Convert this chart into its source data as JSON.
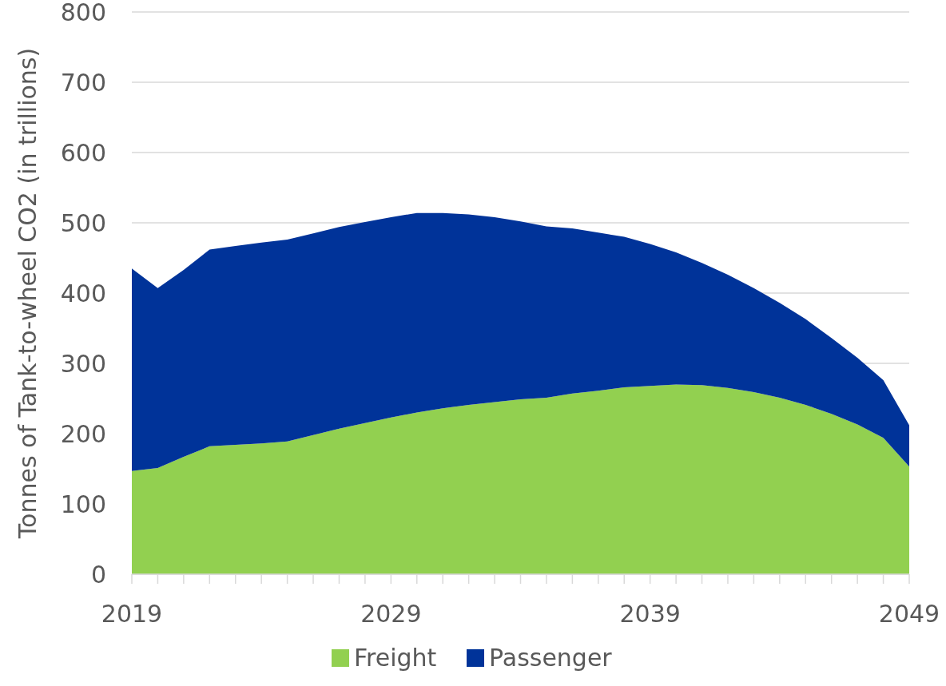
{
  "chart_data": {
    "type": "area",
    "stacked": true,
    "ylabel": "Tonnes of Tank-to-wheel CO2 (in trillions)",
    "x": [
      2019,
      2020,
      2021,
      2022,
      2023,
      2024,
      2025,
      2026,
      2027,
      2028,
      2029,
      2030,
      2031,
      2032,
      2033,
      2034,
      2035,
      2036,
      2037,
      2038,
      2039,
      2040,
      2041,
      2042,
      2043,
      2044,
      2045,
      2046,
      2047,
      2048,
      2049
    ],
    "xlim": [
      2019,
      2049
    ],
    "xticks": [
      2019,
      {
        "value": 2020,
        "label": null
      },
      {
        "value": 2021,
        "label": null
      },
      {
        "value": 2022,
        "label": null
      },
      {
        "value": 2023,
        "label": null
      },
      {
        "value": 2024,
        "label": null
      },
      {
        "value": 2025,
        "label": null
      },
      {
        "value": 2026,
        "label": null
      },
      {
        "value": 2027,
        "label": null
      },
      {
        "value": 2028,
        "label": null
      },
      2029,
      {
        "value": 2030,
        "label": null
      },
      {
        "value": 2031,
        "label": null
      },
      {
        "value": 2032,
        "label": null
      },
      {
        "value": 2033,
        "label": null
      },
      {
        "value": 2034,
        "label": null
      },
      {
        "value": 2035,
        "label": null
      },
      {
        "value": 2036,
        "label": null
      },
      {
        "value": 2037,
        "label": null
      },
      {
        "value": 2038,
        "label": null
      },
      2039,
      {
        "value": 2040,
        "label": null
      },
      {
        "value": 2041,
        "label": null
      },
      {
        "value": 2042,
        "label": null
      },
      {
        "value": 2043,
        "label": null
      },
      {
        "value": 2044,
        "label": null
      },
      {
        "value": 2045,
        "label": null
      },
      {
        "value": 2046,
        "label": null
      },
      {
        "value": 2047,
        "label": null
      },
      {
        "value": 2048,
        "label": null
      },
      2049
    ],
    "ylim": [
      0,
      800
    ],
    "yticks": [
      0,
      100,
      200,
      300,
      400,
      500,
      600,
      700,
      800
    ],
    "grid": "y",
    "legend": "bottom",
    "series": [
      {
        "name": "Freight",
        "color": "#92d050",
        "values": [
          147,
          151,
          167,
          182,
          184,
          186,
          189,
          198,
          207,
          215,
          223,
          230,
          236,
          241,
          245,
          249,
          251,
          257,
          261,
          266,
          268,
          270,
          269,
          265,
          259,
          251,
          241,
          228,
          213,
          194,
          153
        ]
      },
      {
        "name": "Passenger",
        "color": "#003399",
        "values": [
          288,
          256,
          266,
          280,
          283,
          286,
          287,
          287,
          287,
          286,
          285,
          284,
          278,
          271,
          263,
          253,
          244,
          235,
          225,
          214,
          202,
          188,
          174,
          161,
          148,
          135,
          122,
          108,
          95,
          82,
          59
        ]
      }
    ]
  }
}
